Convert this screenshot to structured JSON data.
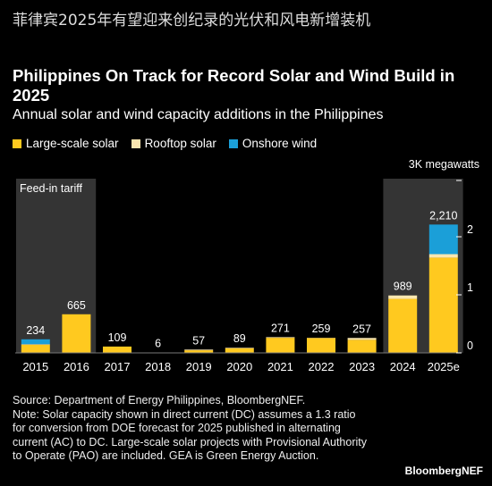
{
  "header": {
    "text": "菲律宾2025年有望迎来创纪录的光伏和风电新增装机"
  },
  "footer": {
    "source": "Source: Department of Energy Philippines, BloombergNEF.",
    "note": "Note: Solar capacity shown in direct current (DC) assumes a 1.3 ratio for conversion from DOE forecast for 2025 published in alternating current (AC) to DC. Large-scale solar projects with Provisional Authority to Operate (PAO) are included. GEA is Green Energy Auction.",
    "brand": "BloombergNEF"
  },
  "colors": {
    "large_scale_solar": "#FFC91F",
    "rooftop_solar": "#FBE7B0",
    "onshore_wind": "#1B9FD8",
    "highlight_band": "#343434"
  },
  "chart_data": {
    "type": "bar",
    "stacked": true,
    "title": "Philippines On Track for Record Solar and Wind Build in 2025",
    "subtitle": "Annual solar and wind capacity additions in the Philippines",
    "unit_label": "3K megawatts",
    "categories": [
      "2015",
      "2016",
      "2017",
      "2018",
      "2019",
      "2020",
      "2021",
      "2022",
      "2023",
      "2024",
      "2025e"
    ],
    "series": [
      {
        "name": "Large-scale solar",
        "values": [
          140,
          665,
          109,
          6,
          45,
          80,
          260,
          255,
          225,
          930,
          1640
        ]
      },
      {
        "name": "Rooftop solar",
        "values": [
          10,
          0,
          0,
          0,
          12,
          9,
          11,
          4,
          32,
          59,
          60
        ]
      },
      {
        "name": "Onshore wind",
        "values": [
          84,
          0,
          0,
          0,
          0,
          0,
          0,
          0,
          0,
          0,
          510
        ]
      }
    ],
    "totals": [
      "234",
      "665",
      "109",
      "6",
      "57",
      "89",
      "271",
      "259",
      "257",
      "989",
      "2,210"
    ],
    "ylim": [
      0,
      3000
    ],
    "yticks": [
      0,
      1000,
      2000
    ],
    "ytick_labels": [
      "0",
      "1",
      "2"
    ],
    "annotations": [
      {
        "text": "Feed-in tariff",
        "categories": [
          "2015",
          "2016"
        ]
      },
      {
        "text": "",
        "categories": [
          "2024",
          "2025e"
        ]
      }
    ],
    "grid": false,
    "legend_position": "top-left"
  }
}
